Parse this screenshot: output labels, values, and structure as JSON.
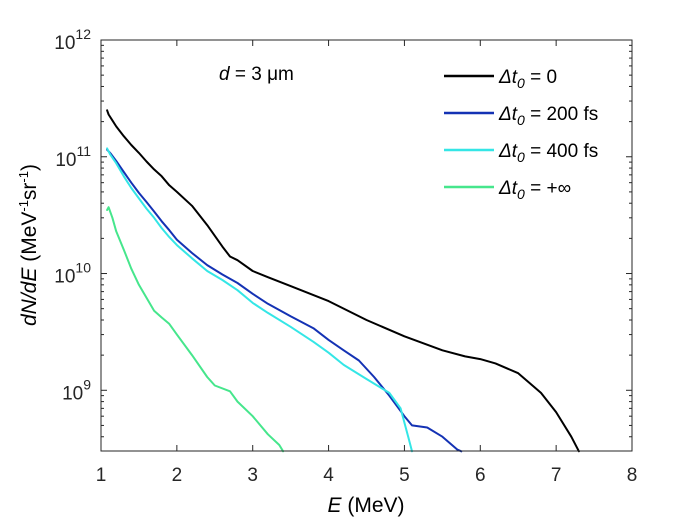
{
  "chart_data": {
    "type": "line",
    "xlabel": {
      "var": "E",
      "unit": " (MeV)"
    },
    "ylabel": {
      "var": "dN/dE",
      "unit_prefix": " (MeV",
      "unit_exp1": "-1",
      "unit_mid": "sr",
      "unit_exp2": "-1",
      "unit_suffix": ")"
    },
    "xlim": [
      1,
      8
    ],
    "ylim_log10": [
      8.48,
      12
    ],
    "x_ticks": [
      "1",
      "2",
      "3",
      "4",
      "5",
      "6",
      "7",
      "8"
    ],
    "y_ticks": [
      {
        "base": "10",
        "exp": "9",
        "log": 9
      },
      {
        "base": "10",
        "exp": "10",
        "log": 10
      },
      {
        "base": "10",
        "exp": "11",
        "log": 11
      },
      {
        "base": "10",
        "exp": "12",
        "log": 12
      }
    ],
    "annotation": {
      "var": "d",
      "rest": " = 3 μm"
    },
    "series": [
      {
        "name": "Δt0 = 0",
        "legend": {
          "delta": "Δ",
          "var": "t",
          "sub": "0",
          "rest": " = 0"
        },
        "color": "#000000",
        "points": [
          [
            1.08,
            250000000000.0
          ],
          [
            1.1,
            230000000000.0
          ],
          [
            1.15,
            205000000000.0
          ],
          [
            1.2,
            182000000000.0
          ],
          [
            1.3,
            150000000000.0
          ],
          [
            1.4,
            126000000000.0
          ],
          [
            1.5,
            108000000000.0
          ],
          [
            1.6,
            91000000000.0
          ],
          [
            1.7,
            78000000000.0
          ],
          [
            1.8,
            68000000000.0
          ],
          [
            1.9,
            57000000000.0
          ],
          [
            2.0,
            50000000000.0
          ],
          [
            2.2,
            38000000000.0
          ],
          [
            2.4,
            26000000000.0
          ],
          [
            2.6,
            17000000000.0
          ],
          [
            2.7,
            14000000000.0
          ],
          [
            2.8,
            13000000000.0
          ],
          [
            3.0,
            10500000000.0
          ],
          [
            3.2,
            9300000000.0
          ],
          [
            3.5,
            7800000000.0
          ],
          [
            4.0,
            5800000000.0
          ],
          [
            4.5,
            4000000000.0
          ],
          [
            5.0,
            2900000000.0
          ],
          [
            5.5,
            2200000000.0
          ],
          [
            5.8,
            1950000000.0
          ],
          [
            6.0,
            1850000000.0
          ],
          [
            6.2,
            1700000000.0
          ],
          [
            6.5,
            1400000000.0
          ],
          [
            6.8,
            950000000.0
          ],
          [
            7.0,
            650000000.0
          ],
          [
            7.2,
            400000000.0
          ],
          [
            7.3,
            300000000.0
          ]
        ]
      },
      {
        "name": "Δt0 = 200 fs",
        "legend": {
          "delta": "Δ",
          "var": "t",
          "sub": "0",
          "rest": " = 200 fs"
        },
        "color": "#1432b4",
        "points": [
          [
            1.08,
            115000000000.0
          ],
          [
            1.12,
            108000000000.0
          ],
          [
            1.2,
            92000000000.0
          ],
          [
            1.3,
            74000000000.0
          ],
          [
            1.4,
            60000000000.0
          ],
          [
            1.5,
            49000000000.0
          ],
          [
            1.6,
            41000000000.0
          ],
          [
            1.7,
            34000000000.0
          ],
          [
            1.8,
            28000000000.0
          ],
          [
            1.9,
            23500000000.0
          ],
          [
            2.0,
            19500000000.0
          ],
          [
            2.2,
            15000000000.0
          ],
          [
            2.4,
            11800000000.0
          ],
          [
            2.6,
            9800000000.0
          ],
          [
            2.8,
            8300000000.0
          ],
          [
            3.0,
            6700000000.0
          ],
          [
            3.2,
            5500000000.0
          ],
          [
            3.5,
            4300000000.0
          ],
          [
            3.8,
            3400000000.0
          ],
          [
            4.0,
            2700000000.0
          ],
          [
            4.2,
            2200000000.0
          ],
          [
            4.4,
            1800000000.0
          ],
          [
            4.6,
            1300000000.0
          ],
          [
            4.8,
            900000000.0
          ],
          [
            5.0,
            600000000.0
          ],
          [
            5.1,
            500000000.0
          ],
          [
            5.3,
            480000000.0
          ],
          [
            5.5,
            400000000.0
          ],
          [
            5.7,
            310000000.0
          ],
          [
            5.75,
            300000000.0
          ]
        ]
      },
      {
        "name": "Δt0 = 400 fs",
        "legend": {
          "delta": "Δ",
          "var": "t",
          "sub": "0",
          "rest": " = 400 fs"
        },
        "color": "#34e6e6",
        "points": [
          [
            1.08,
            118000000000.0
          ],
          [
            1.12,
            105000000000.0
          ],
          [
            1.2,
            88000000000.0
          ],
          [
            1.3,
            68000000000.0
          ],
          [
            1.4,
            54000000000.0
          ],
          [
            1.5,
            44000000000.0
          ],
          [
            1.6,
            36000000000.0
          ],
          [
            1.7,
            30000000000.0
          ],
          [
            1.8,
            24500000000.0
          ],
          [
            1.9,
            20500000000.0
          ],
          [
            2.0,
            17500000000.0
          ],
          [
            2.2,
            13500000000.0
          ],
          [
            2.4,
            10500000000.0
          ],
          [
            2.6,
            8800000000.0
          ],
          [
            2.8,
            7200000000.0
          ],
          [
            3.0,
            5600000000.0
          ],
          [
            3.2,
            4600000000.0
          ],
          [
            3.5,
            3500000000.0
          ],
          [
            3.8,
            2600000000.0
          ],
          [
            4.0,
            2100000000.0
          ],
          [
            4.2,
            1650000000.0
          ],
          [
            4.5,
            1250000000.0
          ],
          [
            4.8,
            950000000.0
          ],
          [
            4.95,
            700000000.0
          ],
          [
            5.05,
            400000000.0
          ],
          [
            5.1,
            300000000.0
          ]
        ]
      },
      {
        "name": "Δt0 = +∞",
        "legend": {
          "delta": "Δ",
          "var": "t",
          "sub": "0",
          "rest": " = +∞"
        },
        "color": "#46e68c",
        "points": [
          [
            1.08,
            35000000000.0
          ],
          [
            1.1,
            37000000000.0
          ],
          [
            1.15,
            30000000000.0
          ],
          [
            1.2,
            23000000000.0
          ],
          [
            1.3,
            16000000000.0
          ],
          [
            1.4,
            11000000000.0
          ],
          [
            1.5,
            8000000000.0
          ],
          [
            1.6,
            6200000000.0
          ],
          [
            1.7,
            4800000000.0
          ],
          [
            1.8,
            4200000000.0
          ],
          [
            1.9,
            3700000000.0
          ],
          [
            2.0,
            3000000000.0
          ],
          [
            2.2,
            2000000000.0
          ],
          [
            2.4,
            1300000000.0
          ],
          [
            2.5,
            1100000000.0
          ],
          [
            2.7,
            980000000.0
          ],
          [
            2.8,
            800000000.0
          ],
          [
            3.0,
            600000000.0
          ],
          [
            3.2,
            420000000.0
          ],
          [
            3.35,
            340000000.0
          ],
          [
            3.4,
            300000000.0
          ]
        ]
      }
    ]
  }
}
